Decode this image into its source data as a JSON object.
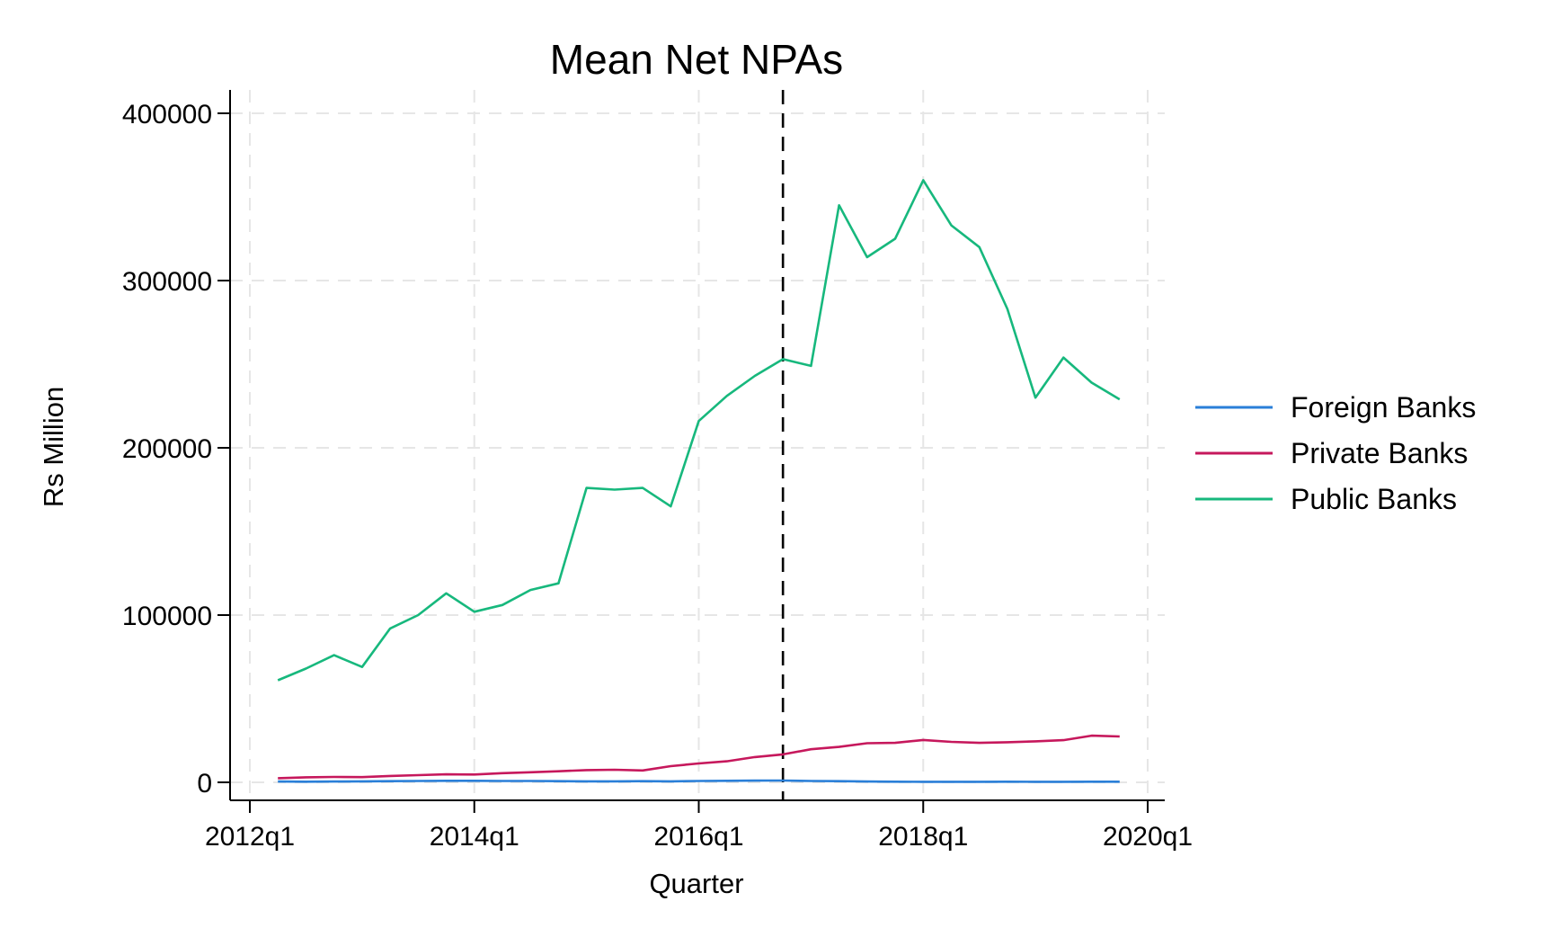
{
  "chart_data": {
    "type": "line",
    "title": "Mean Net NPAs",
    "xlabel": "Quarter",
    "ylabel": "Rs Million",
    "x_tick_labels": [
      "2012q1",
      "2014q1",
      "2016q1",
      "2018q1",
      "2020q1"
    ],
    "y_tick_labels": [
      "0",
      "100000",
      "200000",
      "300000",
      "400000"
    ],
    "ylim": [
      0,
      400000
    ],
    "xlim": [
      "2012q1",
      "2020q1"
    ],
    "grid": true,
    "legend_position": "right",
    "reference_line": {
      "x": "2016q4",
      "style": "dashed",
      "color": "#000000"
    },
    "x": [
      "2012q2",
      "2012q3",
      "2012q4",
      "2013q1",
      "2013q2",
      "2013q3",
      "2013q4",
      "2014q1",
      "2014q2",
      "2014q3",
      "2014q4",
      "2015q1",
      "2015q2",
      "2015q3",
      "2015q4",
      "2016q1",
      "2016q2",
      "2016q3",
      "2016q4",
      "2017q1",
      "2017q2",
      "2017q3",
      "2017q4",
      "2018q1",
      "2018q2",
      "2018q3",
      "2018q4",
      "2019q1",
      "2019q2",
      "2019q3",
      "2019q4"
    ],
    "series": [
      {
        "name": "Foreign Banks",
        "color": "#2a7fd8",
        "values": [
          500,
          400,
          500,
          600,
          700,
          800,
          900,
          900,
          800,
          800,
          700,
          600,
          600,
          700,
          600,
          800,
          900,
          1000,
          1100,
          800,
          700,
          500,
          400,
          300,
          300,
          300,
          400,
          300,
          300,
          400,
          400
        ]
      },
      {
        "name": "Private Banks",
        "color": "#c6185c",
        "values": [
          2500,
          3000,
          3200,
          3100,
          3800,
          4300,
          4800,
          4700,
          5500,
          6000,
          6600,
          7300,
          7500,
          7100,
          9700,
          11300,
          12600,
          15100,
          16700,
          19800,
          21200,
          23400,
          23600,
          25300,
          24200,
          23600,
          24000,
          24500,
          25200,
          27900,
          27400
        ]
      },
      {
        "name": "Public Banks",
        "color": "#17b87d",
        "values": [
          61000,
          68000,
          76000,
          69000,
          92000,
          100000,
          113000,
          102000,
          106000,
          115000,
          119000,
          176000,
          175000,
          176000,
          165000,
          216000,
          231000,
          243000,
          253000,
          249000,
          345000,
          314000,
          325000,
          360000,
          333000,
          320000,
          283000,
          230000,
          254000,
          239000,
          229000
        ]
      }
    ]
  }
}
